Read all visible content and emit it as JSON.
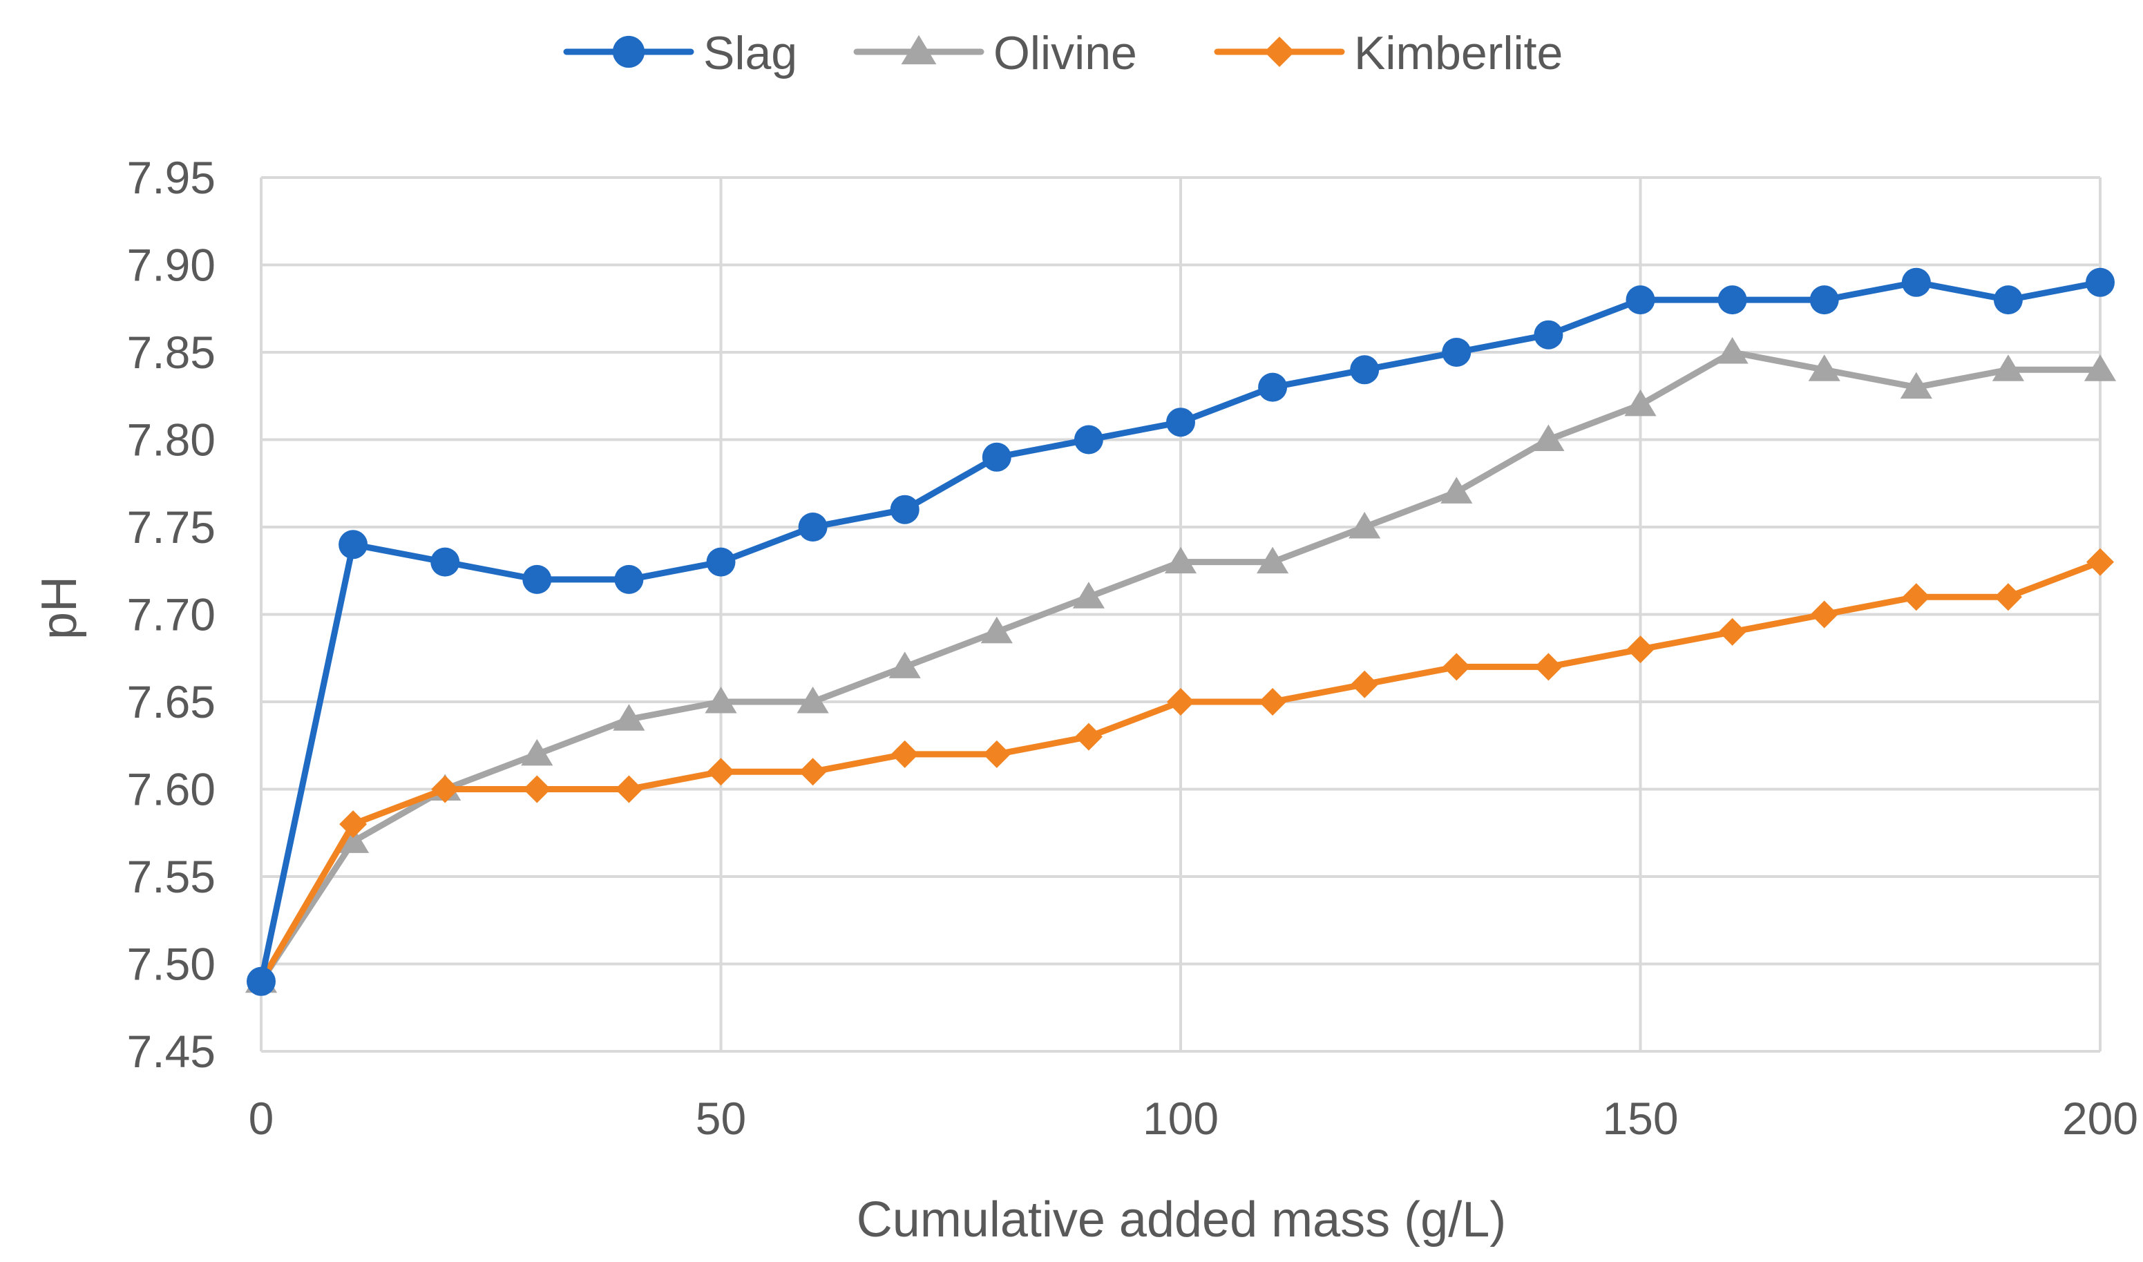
{
  "chart_data": {
    "type": "line",
    "title": "",
    "xlabel": "Cumulative added mass (g/L)",
    "ylabel": "pH",
    "xlim": [
      0,
      200
    ],
    "ylim": [
      7.45,
      7.95
    ],
    "xticks": [
      0,
      50,
      100,
      150,
      200
    ],
    "xtick_labels": [
      "0",
      "50",
      "100",
      "150",
      "200"
    ],
    "yticks": [
      7.45,
      7.5,
      7.55,
      7.6,
      7.65,
      7.7,
      7.75,
      7.8,
      7.85,
      7.9,
      7.95
    ],
    "ytick_labels": [
      "7.45",
      "7.50",
      "7.55",
      "7.60",
      "7.65",
      "7.70",
      "7.75",
      "7.80",
      "7.85",
      "7.90",
      "7.95"
    ],
    "grid": true,
    "legend_position": "top",
    "x": [
      0,
      10,
      20,
      30,
      40,
      50,
      60,
      70,
      80,
      90,
      100,
      110,
      120,
      130,
      140,
      150,
      160,
      170,
      180,
      190,
      200
    ],
    "series": [
      {
        "name": "Slag",
        "color": "#1f6bc4",
        "marker": "circle",
        "values": [
          7.49,
          7.74,
          7.73,
          7.72,
          7.72,
          7.73,
          7.75,
          7.76,
          7.79,
          7.8,
          7.81,
          7.83,
          7.84,
          7.85,
          7.86,
          7.88,
          7.88,
          7.88,
          7.89,
          7.88,
          7.89
        ]
      },
      {
        "name": "Olivine",
        "color": "#a5a5a5",
        "marker": "triangle",
        "values": [
          7.49,
          7.57,
          7.6,
          7.62,
          7.64,
          7.65,
          7.65,
          7.67,
          7.69,
          7.71,
          7.73,
          7.73,
          7.75,
          7.77,
          7.8,
          7.82,
          7.85,
          7.84,
          7.83,
          7.84,
          7.84
        ]
      },
      {
        "name": "Kimberlite",
        "color": "#f28321",
        "marker": "diamond",
        "values": [
          7.49,
          7.58,
          7.6,
          7.6,
          7.6,
          7.61,
          7.61,
          7.62,
          7.62,
          7.63,
          7.65,
          7.65,
          7.66,
          7.67,
          7.67,
          7.68,
          7.69,
          7.7,
          7.71,
          7.71,
          7.73
        ]
      }
    ]
  }
}
